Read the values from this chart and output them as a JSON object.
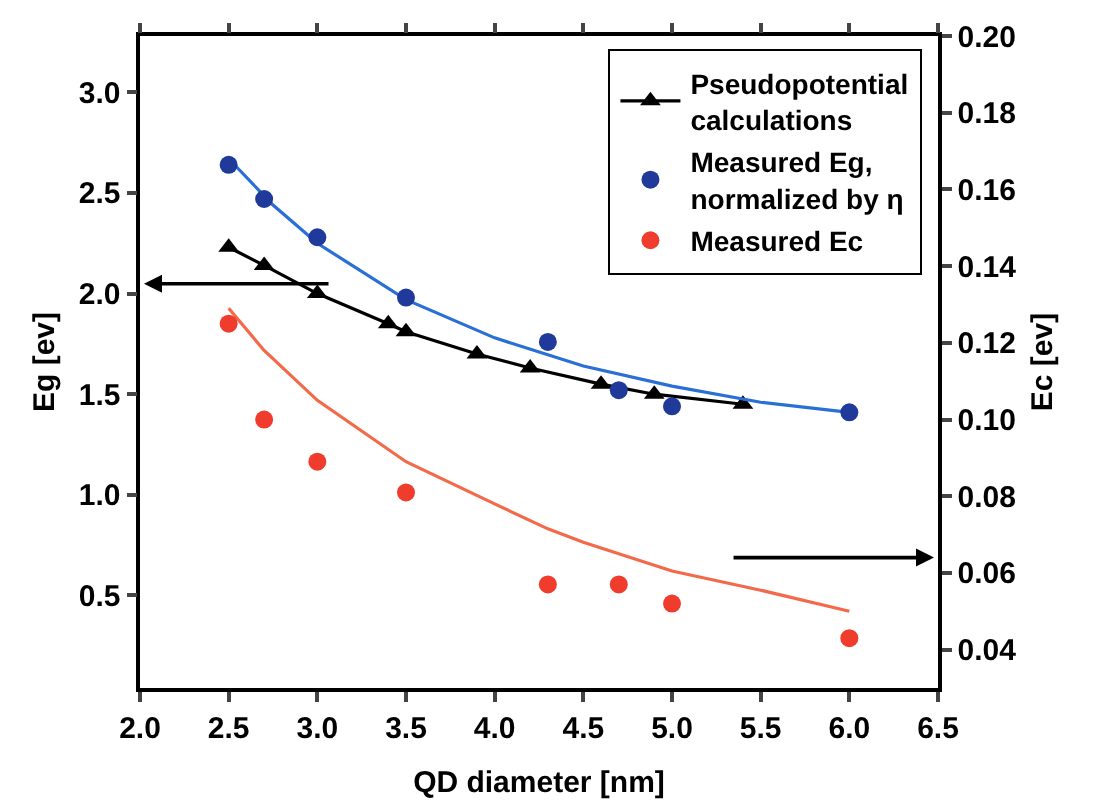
{
  "chart_data": {
    "type": "line",
    "xlabel": "QD diameter [nm]",
    "ylabel": "Eg [ev]",
    "y2label": "Ec [ev]",
    "xlim": [
      2.0,
      6.5
    ],
    "xticks": [
      {
        "value": 2,
        "label": "2.0"
      },
      2.5,
      {
        "value": 3,
        "label": "3.0"
      },
      3.5,
      {
        "value": 4,
        "label": "4.0"
      },
      4.5,
      {
        "value": 5,
        "label": "5.0"
      },
      5.5,
      {
        "value": 6,
        "label": "6.0"
      },
      6.5
    ],
    "ylim": [
      0.04,
      3.28
    ],
    "yticks": [
      0.5,
      {
        "value": 1,
        "label": "1.0"
      },
      1.5,
      {
        "value": 2,
        "label": "2.0"
      },
      2.5,
      {
        "value": 3,
        "label": "3.0"
      }
    ],
    "y2lim": [
      0.03,
      0.2
    ],
    "y2ticks": [
      0.04,
      0.06,
      0.08,
      {
        "value": 0.1,
        "label": "0.10"
      },
      0.12,
      0.14,
      0.16,
      0.18,
      {
        "value": 0.2,
        "label": "0.20"
      }
    ],
    "grid": false,
    "legend": "top right",
    "series": [
      {
        "name": "Pseudopotential calculations",
        "marker": "triangle",
        "color": "#000000",
        "x": [
          2.5,
          2.7,
          3.0,
          3.4,
          3.5,
          3.9,
          4.2,
          4.6,
          4.9,
          5.4
        ],
        "values": [
          2.23,
          2.14,
          2.0,
          1.85,
          1.81,
          1.7,
          1.63,
          1.55,
          1.5,
          1.45
        ]
      },
      {
        "marker": "none",
        "color": "#2a6fd6",
        "x": [
          2.5,
          2.75,
          3.0,
          3.5,
          4.0,
          4.5,
          5.0,
          5.5,
          6.0
        ],
        "values": [
          2.67,
          2.44,
          2.25,
          1.97,
          1.78,
          1.64,
          1.54,
          1.46,
          1.41
        ]
      },
      {
        "name": "Measured Eg, normalized by η",
        "type": "scatter",
        "marker": "circle",
        "color": "#1f3a9a",
        "x": [
          2.5,
          2.7,
          3.0,
          3.5,
          4.3,
          4.7,
          5.0,
          6.0
        ],
        "values": [
          2.64,
          2.47,
          2.28,
          1.98,
          1.76,
          1.52,
          1.44,
          1.41
        ]
      },
      {
        "marker": "none",
        "axis": "y2",
        "color": "#f26a4a",
        "x": [
          2.5,
          2.7,
          3.0,
          3.5,
          4.0,
          4.3,
          4.5,
          5.0,
          5.5,
          6.0
        ],
        "values": [
          0.129,
          0.118,
          0.105,
          0.089,
          0.078,
          0.0715,
          0.068,
          0.0605,
          0.0555,
          0.05
        ]
      },
      {
        "name": "Measured Ec",
        "type": "scatter",
        "marker": "circle",
        "axis": "y2",
        "color": "#f03c2c",
        "x": [
          2.5,
          2.7,
          3.0,
          3.5,
          4.3,
          4.7,
          5.0,
          6.0
        ],
        "values": [
          0.125,
          0.1,
          0.089,
          0.081,
          0.057,
          0.057,
          0.052,
          0.043
        ]
      }
    ]
  }
}
